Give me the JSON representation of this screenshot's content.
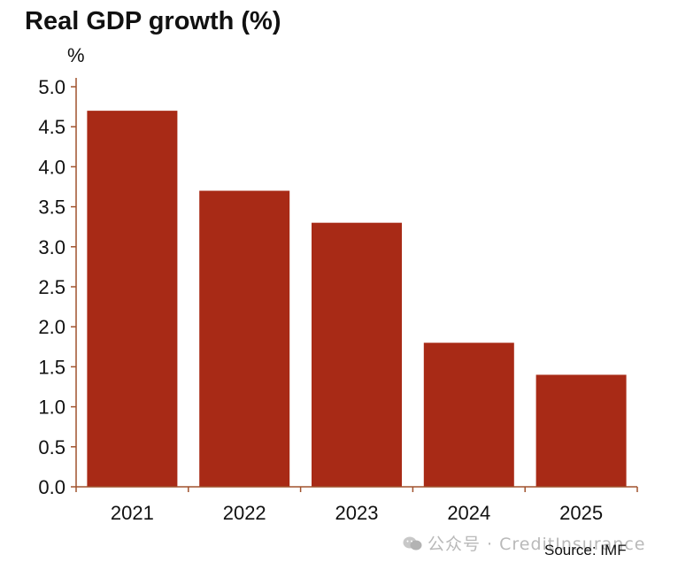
{
  "chart_data": {
    "type": "bar",
    "title": "Real GDP growth (%)",
    "unit_label": "%",
    "categories": [
      "2021",
      "2022",
      "2023",
      "2024",
      "2025"
    ],
    "values": [
      4.7,
      3.7,
      3.3,
      1.8,
      1.4
    ],
    "ylim": [
      0,
      5
    ],
    "yticks": [
      "0.0",
      "0.5",
      "1.0",
      "1.5",
      "2.0",
      "2.5",
      "3.0",
      "3.5",
      "4.0",
      "4.5",
      "5.0"
    ],
    "grid": false,
    "legend": "none",
    "bar_color": "#a82a16",
    "axis_color": "#a0522d"
  },
  "watermark": "公众号 · CreditInsurance",
  "source": "Source: IMF"
}
